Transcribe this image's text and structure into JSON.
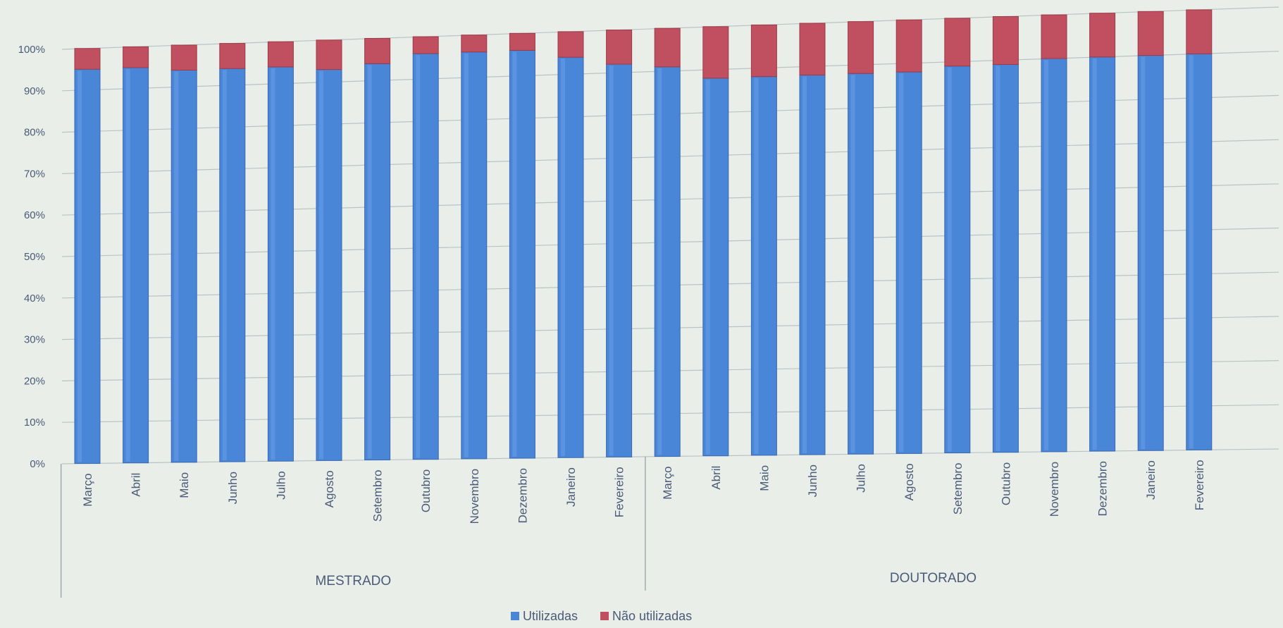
{
  "chart_data": {
    "type": "bar",
    "stacked": true,
    "percent_stacked": true,
    "title": "",
    "xlabel": "",
    "ylabel": "",
    "ylim": [
      0,
      100
    ],
    "y_ticks": [
      "0%",
      "10%",
      "20%",
      "30%",
      "40%",
      "50%",
      "60%",
      "70%",
      "80%",
      "90%",
      "100%"
    ],
    "grid": true,
    "legend_position": "bottom",
    "groups": [
      {
        "label": "MESTRADO",
        "categories": [
          "Março",
          "Abril",
          "Maio",
          "Junho",
          "Julho",
          "Agosto",
          "Setembro",
          "Outubro",
          "Novembro",
          "Dezembro",
          "Janeiro",
          "Fevereiro"
        ],
        "series": [
          {
            "name": "Utilizadas",
            "values": [
              95,
              95,
              94,
              94,
              94,
              93,
              94,
              96,
              96,
              96,
              94,
              92
            ]
          },
          {
            "name": "Não utilizadas",
            "values": [
              5,
              5,
              6,
              6,
              6,
              7,
              6,
              4,
              4,
              4,
              6,
              8
            ]
          }
        ]
      },
      {
        "label": "DOUTORADO",
        "categories": [
          "Março",
          "Abril",
          "Maio",
          "Junho",
          "Julho",
          "Agosto",
          "Setembro",
          "Outubro",
          "Novembro",
          "Dezembro",
          "Janeiro",
          "Fevereiro"
        ],
        "series": [
          {
            "name": "Utilizadas",
            "values": [
              91,
              88,
              88,
              88,
              88,
              88,
              89,
              89,
              90,
              90,
              90,
              90
            ]
          },
          {
            "name": "Não utilizadas",
            "values": [
              9,
              12,
              12,
              12,
              12,
              12,
              11,
              11,
              10,
              10,
              10,
              10
            ]
          }
        ]
      }
    ],
    "legend": [
      {
        "name": "Utilizadas",
        "color": "#4a86d8"
      },
      {
        "name": "Não utilizadas",
        "color": "#c0505f"
      }
    ]
  }
}
